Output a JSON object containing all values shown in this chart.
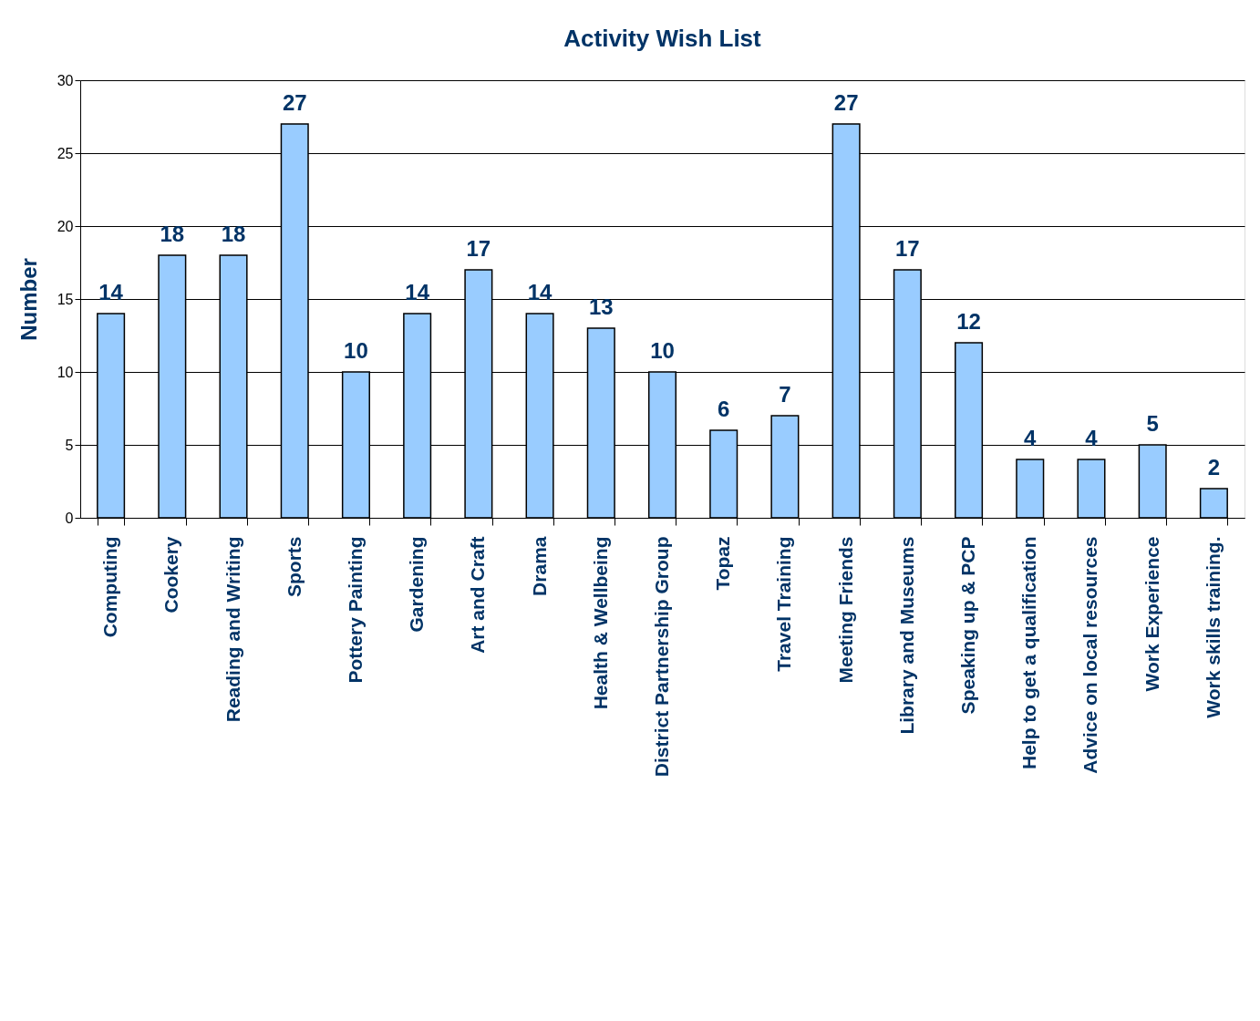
{
  "chart_data": {
    "type": "bar",
    "title": "Activity Wish List",
    "ylabel": "Number",
    "categories": [
      "Computing",
      "Cookery",
      "Reading and Writing",
      "Sports",
      "Pottery Painting",
      "Gardening",
      "Art and Craft",
      "Drama",
      "Health & Wellbeing",
      "District Partnership Group",
      "Topaz",
      "Travel Training",
      "Meeting Friends",
      "Library and Museums",
      "Speaking up & PCP",
      "Help to get a qualification",
      "Advice on local resources",
      "Work Experience",
      "Work skills training."
    ],
    "values": [
      14,
      18,
      18,
      27,
      10,
      14,
      17,
      14,
      13,
      10,
      6,
      7,
      27,
      17,
      12,
      4,
      4,
      5,
      2
    ],
    "color": "#99ccff",
    "ylim": [
      0,
      30
    ],
    "yticks": [
      0,
      5,
      10,
      15,
      20,
      25,
      30
    ],
    "grid": "y",
    "data_labels": true
  }
}
